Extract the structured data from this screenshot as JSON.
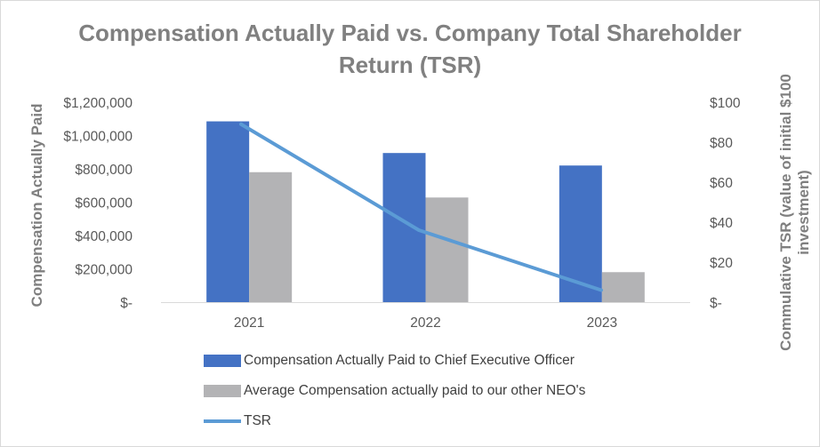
{
  "chart_data": {
    "type": "bar",
    "title_lines": [
      "Compensation Actually Paid vs. Company Total Shareholder",
      "Return (TSR)"
    ],
    "categories": [
      "2021",
      "2022",
      "2023"
    ],
    "ylabel": "Compensation Actually Paid",
    "ylabel_right_lines": [
      "Commulative TSR (value of initial $100",
      "investment)"
    ],
    "ylim": [
      0,
      1200000
    ],
    "ylim_right": [
      0,
      100
    ],
    "yticks_left": [
      "$-",
      "$200,000",
      "$400,000",
      "$600,000",
      "$800,000",
      "$1,000,000",
      "$1,200,000"
    ],
    "yticks_left_values": [
      0,
      200000,
      400000,
      600000,
      800000,
      1000000,
      1200000
    ],
    "yticks_right": [
      "$-",
      "$20",
      "$40",
      "$60",
      "$80",
      "$100"
    ],
    "yticks_right_values": [
      0,
      20,
      40,
      60,
      80,
      100
    ],
    "grid": false,
    "legend_position": "bottom",
    "series": [
      {
        "name": "Compensation Actually Paid to Chief Executive Officer",
        "kind": "bar",
        "axis": "left",
        "color": "#4472c4",
        "values": [
          1085000,
          895000,
          820000
        ]
      },
      {
        "name": "Average Compensation actually paid to our other NEO's",
        "kind": "bar",
        "axis": "left",
        "color": "#b3b3b5",
        "values": [
          780000,
          628000,
          180000
        ]
      },
      {
        "name": "TSR",
        "kind": "line",
        "axis": "right",
        "color": "#5b9bd5",
        "values": [
          89,
          36,
          6
        ]
      }
    ]
  }
}
